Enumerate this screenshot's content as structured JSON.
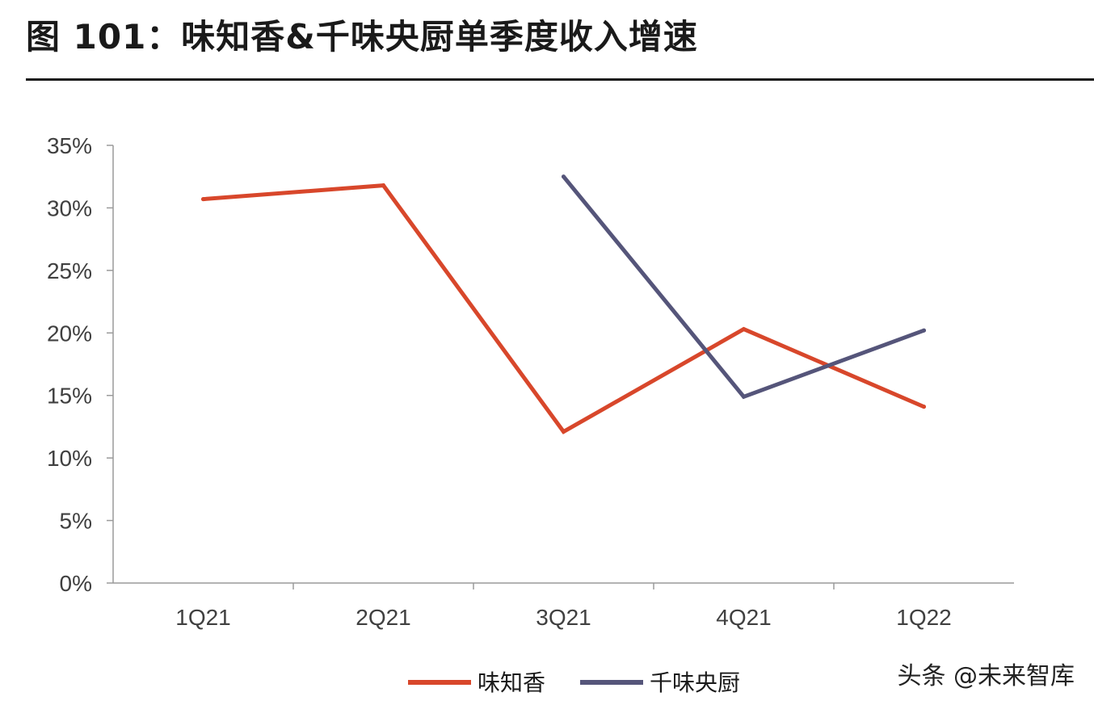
{
  "header": {
    "title": "图 101：味知香&千味央厨单季度收入增速"
  },
  "watermark": "头条 @未来智库",
  "chart_data": {
    "type": "line",
    "title": "",
    "xlabel": "",
    "ylabel": "",
    "categories": [
      "1Q21",
      "2Q21",
      "3Q21",
      "4Q21",
      "1Q22"
    ],
    "ylim": [
      0,
      35
    ],
    "yticks": [
      0,
      5,
      10,
      15,
      20,
      25,
      30,
      35
    ],
    "ytick_labels": [
      "0%",
      "5%",
      "10%",
      "15%",
      "20%",
      "25%",
      "30%",
      "35%"
    ],
    "grid": false,
    "legend_position": "bottom-center",
    "series": [
      {
        "name": "味知香",
        "color": "#d8472b",
        "values": [
          30.7,
          31.8,
          12.1,
          20.3,
          14.1
        ]
      },
      {
        "name": "千味央厨",
        "color": "#55557a",
        "values": [
          null,
          null,
          32.5,
          14.9,
          20.2
        ]
      }
    ]
  }
}
